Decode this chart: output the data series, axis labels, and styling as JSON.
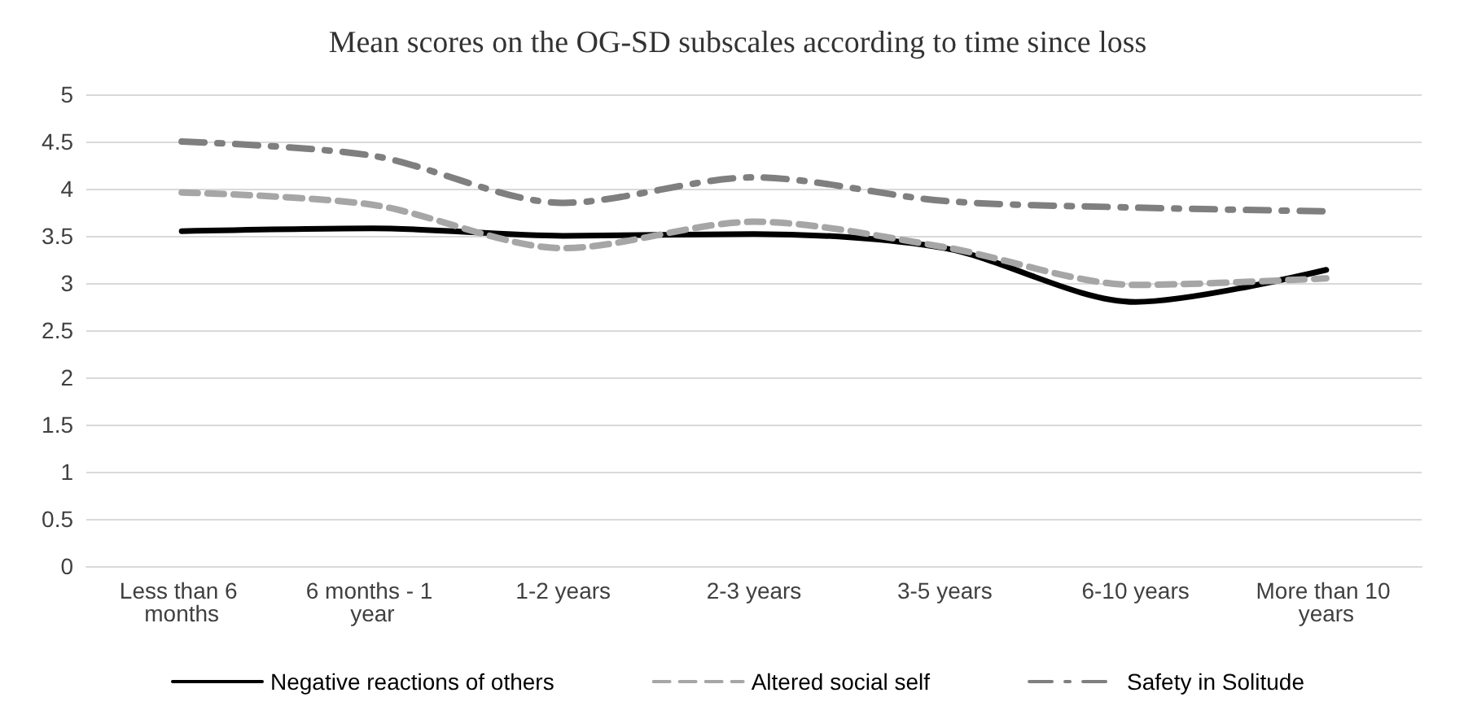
{
  "chart_data": {
    "type": "line",
    "title": "Mean scores on the OG-SD subscales according to time since loss",
    "categories": [
      "Less than 6 months",
      "6 months - 1 year",
      "1-2 years",
      "2-3 years",
      "3-5 years",
      "6-10 years",
      "More than 10 years"
    ],
    "series": [
      {
        "name": "Negative reactions of others",
        "color": "#000000",
        "line_style": "solid",
        "values": [
          3.55,
          3.58,
          3.5,
          3.52,
          3.37,
          2.8,
          3.14
        ]
      },
      {
        "name": "Altered social self",
        "color": "#a6a6a6",
        "line_style": "dashed",
        "values": [
          3.96,
          3.83,
          3.37,
          3.65,
          3.38,
          2.98,
          3.05
        ]
      },
      {
        "name": "Safety in Solitude",
        "color": "#7f7f7f",
        "line_style": "dashed",
        "values": [
          4.5,
          4.35,
          3.85,
          4.12,
          3.87,
          3.8,
          3.76
        ]
      }
    ],
    "ylim": [
      0,
      5
    ],
    "yticks": [
      0,
      0.5,
      1,
      1.5,
      2,
      2.5,
      3,
      3.5,
      4,
      4.5,
      5
    ],
    "grid": "y",
    "legend": "bottom",
    "marker": "none"
  }
}
